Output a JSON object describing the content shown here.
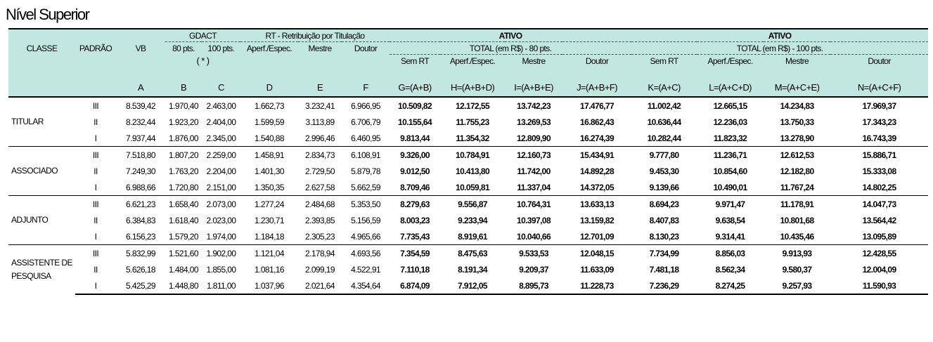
{
  "title": "Nível Superior",
  "header": {
    "classe": "CLASSE",
    "padrao": "PADRÃO",
    "vb": "VB",
    "gdact": "GDACT",
    "gdact_80": "80 pts.",
    "gdact_100": "100 pts.",
    "gdact_note": "( * )",
    "rt": "RT - Retribuição por Titulação",
    "rt_aperf": "Aperf./Espec.",
    "rt_mestre": "Mestre",
    "rt_doutor": "Doutor",
    "ativo1": "ATIVO",
    "total80": "TOTAL (em R$) - 80 pts.",
    "ativo2": "ATIVO",
    "total100": "TOTAL (em R$) - 100 pts.",
    "sem_rt": "Sem RT",
    "aperf": "Aperf./Espec.",
    "mestre": "Mestre",
    "doutor": "Doutor",
    "letters": [
      "A",
      "B",
      "C",
      "D",
      "E",
      "F",
      "G=(A+B)",
      "H=(A+B+D)",
      "I=(A+B+E)",
      "J=(A+B+F)",
      "K=(A+C)",
      "L=(A+C+D)",
      "M=(A+C+E)",
      "N=(A+C+F)"
    ]
  },
  "groups": [
    {
      "classe": "TITULAR",
      "rows": [
        {
          "padrao": "III",
          "values": [
            "8.539,42",
            "1.970,40",
            "2.463,00",
            "1.662,73",
            "3.232,41",
            "6.966,95",
            "10.509,82",
            "12.172,55",
            "13.742,23",
            "17.476,77",
            "11.002,42",
            "12.665,15",
            "14.234,83",
            "17.969,37"
          ]
        },
        {
          "padrao": "II",
          "values": [
            "8.232,44",
            "1.923,20",
            "2.404,00",
            "1.599,59",
            "3.113,89",
            "6.706,79",
            "10.155,64",
            "11.755,23",
            "13.269,53",
            "16.862,43",
            "10.636,44",
            "12.236,03",
            "13.750,33",
            "17.343,23"
          ]
        },
        {
          "padrao": "I",
          "values": [
            "7.937,44",
            "1.876,00",
            "2.345,00",
            "1.540,88",
            "2.996,46",
            "6.460,95",
            "9.813,44",
            "11.354,32",
            "12.809,90",
            "16.274,39",
            "10.282,44",
            "11.823,32",
            "13.278,90",
            "16.743,39"
          ]
        }
      ]
    },
    {
      "classe": "ASSOCIADO",
      "rows": [
        {
          "padrao": "III",
          "values": [
            "7.518,80",
            "1.807,20",
            "2.259,00",
            "1.458,91",
            "2.834,73",
            "6.108,91",
            "9.326,00",
            "10.784,91",
            "12.160,73",
            "15.434,91",
            "9.777,80",
            "11.236,71",
            "12.612,53",
            "15.886,71"
          ]
        },
        {
          "padrao": "II",
          "values": [
            "7.249,30",
            "1.763,20",
            "2.204,00",
            "1.401,30",
            "2.729,50",
            "5.879,78",
            "9.012,50",
            "10.413,80",
            "11.742,00",
            "14.892,28",
            "9.453,30",
            "10.854,60",
            "12.182,80",
            "15.333,08"
          ]
        },
        {
          "padrao": "I",
          "values": [
            "6.988,66",
            "1.720,80",
            "2.151,00",
            "1.350,35",
            "2.627,58",
            "5.662,59",
            "8.709,46",
            "10.059,81",
            "11.337,04",
            "14.372,05",
            "9.139,66",
            "10.490,01",
            "11.767,24",
            "14.802,25"
          ]
        }
      ]
    },
    {
      "classe": "ADJUNTO",
      "rows": [
        {
          "padrao": "III",
          "values": [
            "6.621,23",
            "1.658,40",
            "2.073,00",
            "1.277,24",
            "2.484,68",
            "5.353,50",
            "8.279,63",
            "9.556,87",
            "10.764,31",
            "13.633,13",
            "8.694,23",
            "9.971,47",
            "11.178,91",
            "14.047,73"
          ]
        },
        {
          "padrao": "II",
          "values": [
            "6.384,83",
            "1.618,40",
            "2.023,00",
            "1.230,71",
            "2.393,85",
            "5.156,59",
            "8.003,23",
            "9.233,94",
            "10.397,08",
            "13.159,82",
            "8.407,83",
            "9.638,54",
            "10.801,68",
            "13.564,42"
          ]
        },
        {
          "padrao": "I",
          "values": [
            "6.156,23",
            "1.579,20",
            "1.974,00",
            "1.184,18",
            "2.305,23",
            "4.965,66",
            "7.735,43",
            "8.919,61",
            "10.040,66",
            "12.701,09",
            "8.130,23",
            "9.314,41",
            "10.435,46",
            "13.095,89"
          ]
        }
      ]
    },
    {
      "classe": "ASSISTENTE DE PESQUISA",
      "rows": [
        {
          "padrao": "III",
          "values": [
            "5.832,99",
            "1.521,60",
            "1.902,00",
            "1.121,04",
            "2.178,94",
            "4.693,56",
            "7.354,59",
            "8.475,63",
            "9.533,53",
            "12.048,15",
            "7.734,99",
            "8.856,03",
            "9.913,93",
            "12.428,55"
          ]
        },
        {
          "padrao": "II",
          "values": [
            "5.626,18",
            "1.484,00",
            "1.855,00",
            "1.081,16",
            "2.099,19",
            "4.522,91",
            "7.110,18",
            "8.191,34",
            "9.209,37",
            "11.633,09",
            "7.481,18",
            "8.562,34",
            "9.580,37",
            "12.004,09"
          ]
        },
        {
          "padrao": "I",
          "values": [
            "5.425,29",
            "1.448,80",
            "1.811,00",
            "1.037,96",
            "2.021,64",
            "4.354,64",
            "6.874,09",
            "7.912,05",
            "8.895,73",
            "11.228,73",
            "7.236,29",
            "8.274,25",
            "9.257,93",
            "11.590,93"
          ]
        }
      ]
    }
  ]
}
